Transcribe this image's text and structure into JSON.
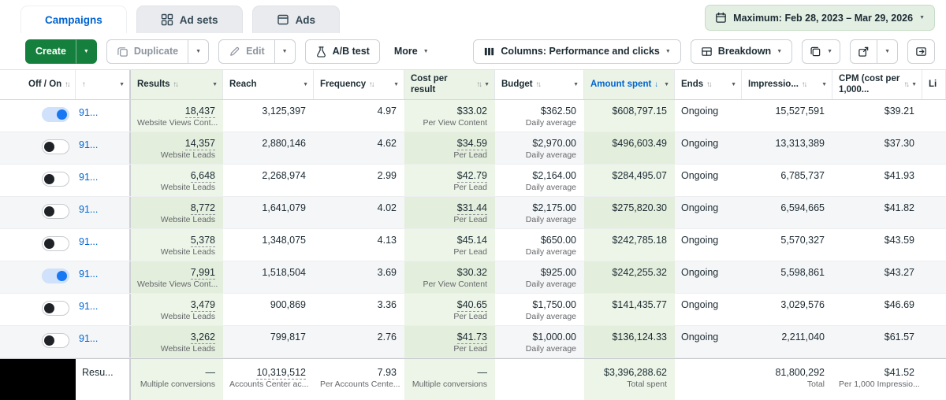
{
  "tabs": {
    "campaigns": "Campaigns",
    "adsets": "Ad sets",
    "ads": "Ads"
  },
  "date_range": "Maximum: Feb 28, 2023 – Mar 29, 2026",
  "toolbar": {
    "create": "Create",
    "duplicate": "Duplicate",
    "edit": "Edit",
    "ab_test": "A/B test",
    "more": "More",
    "columns": "Columns: Performance and clicks",
    "breakdown": "Breakdown"
  },
  "glyphs": {
    "caret": "▼",
    "sort_both": "↑↓",
    "sort_up": "↑",
    "sort_down": "↓"
  },
  "icons": [
    "calendar-icon",
    "ad-sets-grid-icon",
    "ads-card-icon",
    "duplicate-icon",
    "edit-pencil-icon",
    "ab-test-beaker-icon",
    "columns-icon",
    "breakdown-icon",
    "layers-icon",
    "export-icon",
    "open-report-icon",
    "chevron-down-icon",
    "sort-icon",
    "toggle-knob"
  ],
  "colors": {
    "accent_blue": "#0064d1",
    "create_green": "#15803d",
    "date_picker_green": "#e3efe3",
    "column_highlight_green": "#ecf5e7",
    "toggle_on_blue": "#1877f2"
  },
  "table": {
    "columns": [
      {
        "key": "toggle",
        "label": "Off / On",
        "sort": "updown",
        "caret": false
      },
      {
        "key": "name",
        "label": "",
        "sort": "up"
      },
      {
        "key": "results",
        "label": "Results",
        "sort": "updown",
        "green": true
      },
      {
        "key": "reach",
        "label": "Reach",
        "sort": null
      },
      {
        "key": "frequency",
        "label": "Frequency",
        "sort": "updown"
      },
      {
        "key": "cost_per_result",
        "label": "Cost per result",
        "sort": "updown",
        "green": true
      },
      {
        "key": "budget",
        "label": "Budget",
        "sort": "updown"
      },
      {
        "key": "amount_spent",
        "label": "Amount spent",
        "sort": "down",
        "green": true,
        "active": true
      },
      {
        "key": "ends",
        "label": "Ends",
        "sort": "updown"
      },
      {
        "key": "impressions",
        "label": "Impressio...",
        "sort": "updown"
      },
      {
        "key": "cpm",
        "label": "CPM (cost per 1,000...",
        "sort": "updown"
      },
      {
        "key": "link_clicks",
        "label": "Li",
        "sort": null,
        "caret": false
      }
    ],
    "rows": [
      {
        "on": true,
        "name": "91...",
        "results": "18,437",
        "results_label": "Website Views Cont...",
        "reach": "3,125,397",
        "frequency": "4.97",
        "cost": "$33.02",
        "cost_label": "Per View Content",
        "cost_underline": false,
        "budget": "$362.50",
        "budget_label": "Daily average",
        "spent": "$608,797.15",
        "ends": "Ongoing",
        "impressions": "15,527,591",
        "cpm": "$39.21"
      },
      {
        "on": false,
        "name": "91...",
        "results": "14,357",
        "results_label": "Website Leads",
        "reach": "2,880,146",
        "frequency": "4.62",
        "cost": "$34.59",
        "cost_label": "Per Lead",
        "cost_underline": true,
        "budget": "$2,970.00",
        "budget_label": "Daily average",
        "spent": "$496,603.49",
        "ends": "Ongoing",
        "impressions": "13,313,389",
        "cpm": "$37.30"
      },
      {
        "on": false,
        "name": "91...",
        "results": "6,648",
        "results_label": "Website Leads",
        "reach": "2,268,974",
        "frequency": "2.99",
        "cost": "$42.79",
        "cost_label": "Per Lead",
        "cost_underline": true,
        "budget": "$2,164.00",
        "budget_label": "Daily average",
        "spent": "$284,495.07",
        "ends": "Ongoing",
        "impressions": "6,785,737",
        "cpm": "$41.93"
      },
      {
        "on": false,
        "name": "91...",
        "results": "8,772",
        "results_label": "Website Leads",
        "reach": "1,641,079",
        "frequency": "4.02",
        "cost": "$31.44",
        "cost_label": "Per Lead",
        "cost_underline": true,
        "budget": "$2,175.00",
        "budget_label": "Daily average",
        "spent": "$275,820.30",
        "ends": "Ongoing",
        "impressions": "6,594,665",
        "cpm": "$41.82"
      },
      {
        "on": false,
        "name": "91...",
        "results": "5,378",
        "results_label": "Website Leads",
        "reach": "1,348,075",
        "frequency": "4.13",
        "cost": "$45.14",
        "cost_label": "Per Lead",
        "cost_underline": false,
        "budget": "$650.00",
        "budget_label": "Daily average",
        "spent": "$242,785.18",
        "ends": "Ongoing",
        "impressions": "5,570,327",
        "cpm": "$43.59"
      },
      {
        "on": true,
        "name": "91...",
        "results": "7,991",
        "results_label": "Website Views Cont...",
        "reach": "1,518,504",
        "frequency": "3.69",
        "cost": "$30.32",
        "cost_label": "Per View Content",
        "cost_underline": false,
        "budget": "$925.00",
        "budget_label": "Daily average",
        "spent": "$242,255.32",
        "ends": "Ongoing",
        "impressions": "5,598,861",
        "cpm": "$43.27"
      },
      {
        "on": false,
        "name": "91...",
        "results": "3,479",
        "results_label": "Website Leads",
        "reach": "900,869",
        "frequency": "3.36",
        "cost": "$40.65",
        "cost_label": "Per Lead",
        "cost_underline": true,
        "budget": "$1,750.00",
        "budget_label": "Daily average",
        "spent": "$141,435.77",
        "ends": "Ongoing",
        "impressions": "3,029,576",
        "cpm": "$46.69"
      },
      {
        "on": false,
        "name": "91...",
        "results": "3,262",
        "results_label": "Website Leads",
        "reach": "799,817",
        "frequency": "2.76",
        "cost": "$41.73",
        "cost_label": "Per Lead",
        "cost_underline": true,
        "budget": "$1,000.00",
        "budget_label": "Daily average",
        "spent": "$136,124.33",
        "ends": "Ongoing",
        "impressions": "2,211,040",
        "cpm": "$61.57"
      }
    ],
    "footer": {
      "name": "Resu...",
      "results": "—",
      "results_label": "Multiple conversions",
      "reach": "10,319,512",
      "reach_label": "Accounts Center ac...",
      "frequency": "7.93",
      "frequency_label": "Per Accounts Cente...",
      "cost": "—",
      "cost_label": "Multiple conversions",
      "spent": "$3,396,288.62",
      "spent_label": "Total spent",
      "impressions": "81,800,292",
      "impressions_label": "Total",
      "cpm": "$41.52",
      "cpm_label": "Per 1,000 Impressio..."
    }
  }
}
